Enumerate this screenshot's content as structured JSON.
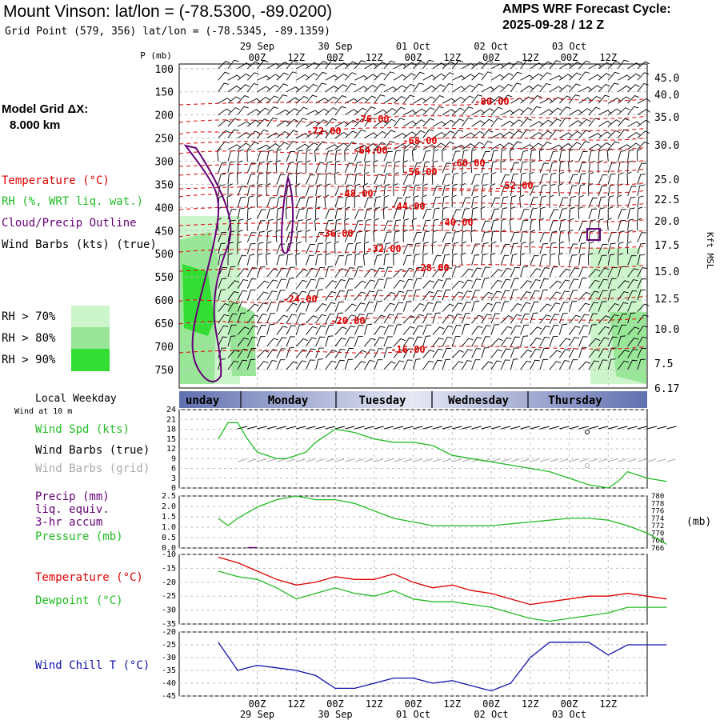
{
  "header": {
    "title": "Mount Vinson:  lat/lon = (-78.5300, -89.0200)",
    "subtitle": "Grid Point (579, 356) lat/lon = (-78.5345, -89.1359)",
    "cycle_line1": "AMPS WRF Forecast Cycle:",
    "cycle_line2": "2025-09-28 / 12  Z"
  },
  "left_panel": {
    "grid_label_1": "Model Grid ΔX:",
    "grid_label_2": "8.000 km",
    "legend_temperature": "Temperature (°C)",
    "legend_rh": "RH (%, WRT liq. wat.)",
    "legend_cloud": "Cloud/Precip Outline",
    "legend_wind": "Wind Barbs (kts) (true)",
    "rh70": "RH > 70%",
    "rh80": "RH > 80%",
    "rh90": "RH > 90%",
    "local_weekday": "Local Weekday",
    "wind_at_10m": "Wind at 10 m",
    "wind_spd": "Wind Spd (kts)",
    "wind_barbs_true": "Wind Barbs (true)",
    "wind_barbs_grid": "Wind Barbs (grid)",
    "precip_1": "Precip (mm)",
    "precip_2": "liq. equiv.",
    "precip_3": "3-hr accum",
    "pressure": "Pressure (mb)",
    "temperature": "Temperature (°C)",
    "dewpoint": "Dewpoint (°C)",
    "wind_chill": "Wind Chill T (°C)"
  },
  "colors": {
    "temperature": "#dd0000",
    "rh70": "#ccf5cc",
    "rh80": "#99e699",
    "rh90": "#33dd33",
    "cloud": "#660077",
    "wind": "#000000",
    "wind_grid": "#aaaaaa",
    "green": "#22bb22",
    "wind_chill": "#1111aa",
    "day_bar": "#6070b0"
  },
  "chart_data": [
    {
      "type": "line",
      "panel": "time-height cross-section",
      "ylabel": "P (mb)",
      "ylabel_right": "Kft MSL",
      "y_ticks": [
        100,
        150,
        200,
        250,
        300,
        350,
        400,
        450,
        500,
        550,
        600,
        650,
        700,
        750
      ],
      "y_right_ticks": [
        "45.0",
        "40.0",
        "35.0",
        "30.0",
        "25.0",
        "22.5",
        "20.0",
        "17.5",
        "15.0",
        "12.5",
        "10.0",
        "7.5",
        "6.17"
      ],
      "x_top_dates": [
        "29 Sep",
        "30 Sep",
        "01 Oct",
        "02 Oct",
        "03 Oct"
      ],
      "x_top_hours": [
        "00Z",
        "12Z",
        "00Z",
        "12Z",
        "00Z",
        "12Z",
        "00Z",
        "12Z",
        "00Z",
        "12Z"
      ],
      "isotherm_labels": [
        "-80.00",
        "-76.00",
        "-72.00",
        "-68.00",
        "-64.00",
        "-60.00",
        "-56.00",
        "-52.00",
        "-48.00",
        "-44.00",
        "-40.00",
        "-36.00",
        "-32.00",
        "-28.00",
        "-24.00",
        "-20.00",
        "-16.00"
      ]
    },
    {
      "type": "line",
      "panel": "10 m wind speed",
      "y_ticks": [
        0,
        3,
        6,
        9,
        12,
        15,
        18,
        21,
        24
      ],
      "days": [
        "unday",
        "Monday",
        "Tuesday",
        "Wednesday",
        "Thursday"
      ],
      "series": [
        {
          "name": "Wind Spd (kts)",
          "x_hours": [
            0,
            3,
            6,
            9,
            12,
            15,
            18,
            21,
            24,
            27,
            30,
            33,
            36,
            42,
            48,
            54,
            60,
            66,
            72,
            78,
            84,
            90,
            96,
            102,
            108,
            114,
            120,
            123,
            126,
            132,
            138
          ],
          "values": [
            15,
            20,
            20,
            15,
            11,
            10,
            9,
            9,
            10,
            11,
            14,
            16,
            18,
            17,
            15,
            14,
            14,
            13,
            10,
            9,
            8,
            7,
            6,
            5,
            3,
            1,
            0,
            2,
            5,
            3,
            2
          ]
        }
      ]
    },
    {
      "type": "line",
      "panel": "precip / pressure",
      "y_ticks_left": [
        "0.0",
        "0.5",
        "1.0",
        "1.5",
        "2.0",
        "2.5"
      ],
      "y_ticks_right": [
        "766",
        "768",
        "770",
        "772",
        "774",
        "776",
        "778",
        "780"
      ],
      "y_unit_right": "(mb)",
      "series": [
        {
          "name": "Pressure (mb)",
          "x_hours": [
            0,
            3,
            6,
            12,
            18,
            24,
            30,
            36,
            42,
            48,
            54,
            60,
            66,
            72,
            78,
            84,
            90,
            96,
            102,
            108,
            114,
            120,
            126,
            132,
            138
          ],
          "values": [
            774,
            772,
            774,
            777,
            779,
            780,
            779,
            779,
            778,
            776,
            774,
            773,
            772,
            772,
            772,
            772,
            772.5,
            773,
            773.5,
            774,
            774,
            773.5,
            772,
            770,
            767
          ]
        },
        {
          "name": "Precip (mm)",
          "x_hours": [
            9,
            12
          ],
          "values": [
            0.02,
            0.02
          ]
        }
      ]
    },
    {
      "type": "line",
      "panel": "temperature / dewpoint",
      "y_ticks": [
        -35,
        -30,
        -25,
        -20,
        -15,
        -10
      ],
      "series": [
        {
          "name": "Temperature (°C)",
          "x_hours": [
            0,
            6,
            12,
            18,
            24,
            30,
            36,
            42,
            48,
            54,
            60,
            66,
            72,
            78,
            84,
            90,
            96,
            102,
            108,
            114,
            120,
            126,
            132,
            138
          ],
          "values": [
            -11,
            -13,
            -16,
            -19,
            -21,
            -20,
            -18,
            -19,
            -19,
            -17,
            -20,
            -22,
            -21,
            -23,
            -24,
            -26,
            -28,
            -27,
            -26,
            -25,
            -25,
            -24,
            -25,
            -26
          ]
        },
        {
          "name": "Dewpoint (°C)",
          "x_hours": [
            0,
            6,
            12,
            18,
            24,
            30,
            36,
            42,
            48,
            54,
            60,
            66,
            72,
            78,
            84,
            90,
            96,
            102,
            108,
            114,
            120,
            126,
            132,
            138
          ],
          "values": [
            -16,
            -18,
            -19,
            -22,
            -26,
            -24,
            -22,
            -24,
            -25,
            -23,
            -26,
            -27,
            -27,
            -28,
            -29,
            -31,
            -33,
            -34,
            -33,
            -32,
            -31,
            -29,
            -29,
            -29
          ]
        }
      ]
    },
    {
      "type": "line",
      "panel": "wind chill",
      "y_ticks": [
        -45,
        -40,
        -35,
        -30,
        -25,
        -20
      ],
      "x_bottom_hours": [
        "00Z",
        "12Z",
        "00Z",
        "12Z",
        "00Z",
        "12Z",
        "00Z",
        "12Z",
        "00Z",
        "12Z"
      ],
      "x_bottom_dates": [
        "29 Sep",
        "30 Sep",
        "01 Oct",
        "02 Oct",
        "03 Oct"
      ],
      "series": [
        {
          "name": "Wind Chill T (°C)",
          "x_hours": [
            0,
            6,
            12,
            18,
            24,
            30,
            36,
            42,
            48,
            54,
            60,
            66,
            72,
            78,
            84,
            90,
            96,
            102,
            108,
            114,
            120,
            126,
            132,
            138
          ],
          "values": [
            -24,
            -35,
            -33,
            -34,
            -35,
            -37,
            -42,
            -42,
            -40,
            -38,
            -38,
            -40,
            -39,
            -41,
            -43,
            -40,
            -30,
            -24,
            -24,
            -24,
            -29,
            -25,
            -25,
            -25
          ]
        }
      ]
    }
  ]
}
